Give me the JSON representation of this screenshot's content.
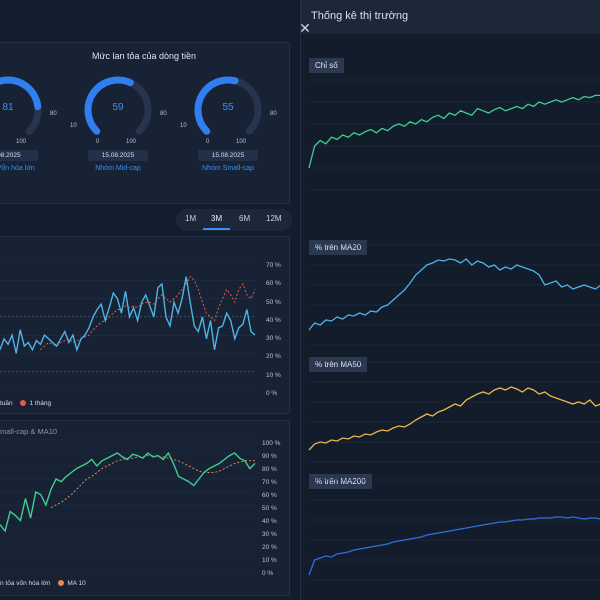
{
  "right_panel": {
    "title": "Thống kê thị trường",
    "close_icon": "close-icon",
    "charts": [
      {
        "label": "Chỉ số",
        "color": "#3fcf8e"
      },
      {
        "label": "% trên MA20",
        "color": "#4fb3e6"
      },
      {
        "label": "% trên MA50",
        "color": "#e8b84a"
      },
      {
        "label": "% trên MA200",
        "color": "#2f6fe0"
      }
    ]
  },
  "gauges": {
    "title": "Mức lan tỏa của dòng tiền",
    "items": [
      {
        "value": 81,
        "fraction": 0.81,
        "min": "",
        "max": "80",
        "bottom_min": "",
        "bottom_max": "100",
        "date": ".08.2025",
        "group": "hóm Vốn hóa lớn"
      },
      {
        "value": 59,
        "fraction": 0.59,
        "min": "10",
        "max": "80",
        "bottom_min": "0",
        "bottom_max": "100",
        "date": "15.08.2025",
        "group": "Nhóm Mid-cap"
      },
      {
        "value": 55,
        "fraction": 0.55,
        "min": "10",
        "max": "80",
        "bottom_min": "0",
        "bottom_max": "100",
        "date": "15.08.2025",
        "group": "Nhóm Small-cap"
      }
    ]
  },
  "period_tabs": [
    "1M",
    "3M",
    "6M",
    "12M"
  ],
  "period_active": "3M",
  "chart1": {
    "y_ticks": [
      "70 %",
      "60 %",
      "50 %",
      "40 %",
      "30 %",
      "20 %",
      "10 %",
      "0 %"
    ],
    "legend": [
      {
        "label": "tuần",
        "color": "#4fb3e6"
      },
      {
        "label": "1 tháng",
        "color": "#e85a4f"
      }
    ]
  },
  "chart2": {
    "title": "mall-cap & MA10",
    "y_ticks": [
      "100 %",
      "90 %",
      "80 %",
      "70 %",
      "60 %",
      "50 %",
      "40 %",
      "30 %",
      "20 %",
      "10 %",
      "0 %"
    ],
    "legend": [
      {
        "label": "n tỏa vốn hóa lớn",
        "color": "#3fcf8e"
      },
      {
        "label": "MA 10",
        "color": "#e8884a"
      }
    ]
  },
  "chart_data": [
    {
      "type": "line",
      "name": "chart1-weekly",
      "values": [
        22,
        28,
        25,
        30,
        20,
        33,
        24,
        26,
        22,
        27,
        25,
        30,
        28,
        26,
        24,
        28,
        32,
        26,
        30,
        22,
        28,
        30,
        34,
        40,
        44,
        47,
        38,
        45,
        53,
        50,
        42,
        54,
        40,
        45,
        38,
        48,
        52,
        46,
        40,
        56,
        58,
        40,
        35,
        48,
        42,
        50,
        62,
        48,
        35,
        32,
        40,
        28,
        38,
        22,
        34,
        35,
        42,
        38,
        28,
        34,
        36,
        44,
        32,
        30
      ],
      "ma": [
        null,
        null,
        null,
        null,
        null,
        null,
        null,
        null,
        null,
        null,
        22,
        24,
        26,
        25,
        24,
        26,
        27,
        28,
        26,
        27,
        28,
        29,
        30,
        33,
        35,
        37,
        38,
        40,
        42,
        44,
        44,
        46,
        45,
        46,
        45,
        47,
        48,
        48,
        47,
        50,
        52,
        50,
        48,
        50,
        52,
        55,
        58,
        62,
        60,
        55,
        48,
        42,
        40,
        38,
        45,
        50,
        55,
        52,
        48,
        55,
        58,
        52,
        50,
        55
      ],
      "ylim": [
        0,
        70
      ]
    },
    {
      "type": "line",
      "name": "chart2-main",
      "values": [
        35,
        30,
        45,
        42,
        38,
        55,
        40,
        60,
        58,
        50,
        62,
        70,
        68,
        72,
        75,
        78,
        80,
        82,
        85,
        80,
        84,
        86,
        88,
        90,
        87,
        85,
        89,
        88,
        86,
        90,
        87,
        88,
        85,
        90,
        82,
        72,
        70,
        68,
        65,
        70,
        75,
        78,
        80,
        82,
        85,
        88,
        90,
        86,
        84,
        78,
        82
      ],
      "ma": [
        null,
        null,
        null,
        null,
        null,
        null,
        null,
        null,
        null,
        null,
        48,
        50,
        52,
        55,
        58,
        62,
        66,
        70,
        72,
        75,
        78,
        80,
        82,
        84,
        85,
        86,
        86,
        87,
        87,
        88,
        88,
        87,
        87,
        86,
        85,
        84,
        82,
        80,
        78,
        76,
        75,
        75,
        75,
        76,
        78,
        80,
        82,
        83,
        84,
        84,
        84
      ],
      "ylim": [
        0,
        100
      ]
    },
    {
      "type": "line",
      "name": "index",
      "values": [
        20,
        40,
        45,
        42,
        48,
        46,
        50,
        48,
        52,
        50,
        53,
        55,
        52,
        56,
        54,
        58,
        60,
        58,
        62,
        60,
        64,
        62,
        66,
        68,
        65,
        70,
        68,
        72,
        70,
        68,
        74,
        72,
        70,
        73,
        75,
        72,
        74,
        76,
        74,
        78,
        76,
        80,
        78,
        80,
        82,
        80,
        82,
        84,
        82,
        85,
        84,
        86,
        86
      ]
    },
    {
      "type": "line",
      "name": "ma20",
      "values": [
        15,
        22,
        20,
        25,
        24,
        28,
        26,
        30,
        29,
        32,
        30,
        34,
        33,
        38,
        40,
        45,
        50,
        55,
        62,
        70,
        75,
        80,
        82,
        85,
        84,
        86,
        85,
        82,
        86,
        80,
        84,
        82,
        78,
        80,
        75,
        78,
        76,
        80,
        78,
        76,
        74,
        70,
        60,
        62,
        64,
        58,
        60,
        56,
        58,
        60,
        58,
        56,
        60
      ]
    },
    {
      "type": "line",
      "name": "ma50",
      "values": [
        12,
        18,
        20,
        19,
        22,
        21,
        24,
        23,
        26,
        25,
        28,
        27,
        30,
        32,
        31,
        34,
        36,
        35,
        38,
        42,
        45,
        48,
        46,
        50,
        52,
        55,
        58,
        56,
        62,
        65,
        68,
        70,
        68,
        72,
        74,
        72,
        75,
        73,
        70,
        74,
        72,
        68,
        70,
        66,
        64,
        62,
        60,
        58,
        60,
        58,
        62,
        56,
        58
      ]
    },
    {
      "type": "line",
      "name": "ma200",
      "values": [
        5,
        20,
        22,
        24,
        23,
        26,
        27,
        28,
        30,
        31,
        32,
        33,
        34,
        35,
        36,
        38,
        39,
        40,
        41,
        42,
        43,
        45,
        46,
        47,
        48,
        49,
        50,
        51,
        52,
        53,
        54,
        55,
        56,
        57,
        58,
        58,
        59,
        60,
        60,
        61,
        61,
        62,
        62,
        62,
        63,
        63,
        62,
        63,
        62,
        61,
        62,
        62,
        61
      ]
    }
  ]
}
